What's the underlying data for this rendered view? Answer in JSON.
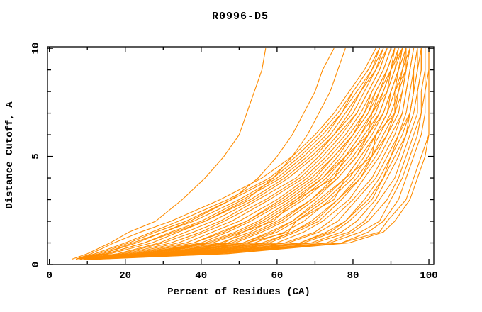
{
  "page": {
    "background": "#ffffff"
  },
  "chart_data": {
    "type": "line",
    "title": "R0996-D5",
    "xlabel": "Percent of Residues (CA)",
    "ylabel": "Distance Cutoff, A",
    "xlim": [
      0,
      100
    ],
    "ylim": [
      0,
      10
    ],
    "x_major_ticks": [
      0,
      20,
      40,
      60,
      80,
      100
    ],
    "x_minor_ticks": [
      10,
      30,
      50,
      70,
      90
    ],
    "y_major_ticks": [
      0,
      5,
      10
    ],
    "y_minor_ticks": [
      1,
      2,
      3,
      4,
      6,
      7,
      8,
      9
    ],
    "grid": false,
    "legend": "none",
    "line_color": "#FF8C00",
    "axis_color": "#000000",
    "series_description": "Each curve is one predicted model: percent of CA residues (x) within a distance cutoff in Angstroms (y). Curves share the cutoff grid below; values are percents per cutoff.",
    "cutoffs": [
      0.25,
      0.5,
      1,
      1.5,
      2,
      3,
      4,
      5,
      6,
      7,
      8,
      9,
      10
    ],
    "series": [
      [
        13,
        47,
        79,
        88,
        91,
        95,
        97,
        99,
        100,
        100,
        100,
        100,
        100
      ],
      [
        12,
        46,
        77,
        87,
        89,
        94,
        96,
        98,
        100,
        100,
        100,
        100,
        100
      ],
      [
        12,
        43,
        77,
        84,
        88,
        92,
        94,
        96,
        98,
        99,
        99,
        100,
        100
      ],
      [
        11,
        44,
        74,
        82,
        87,
        90,
        93,
        95,
        97,
        98,
        99,
        99,
        99
      ],
      [
        12,
        42,
        73,
        80,
        84,
        89,
        92,
        94,
        96,
        98,
        98,
        99,
        99
      ],
      [
        11,
        41,
        70,
        79,
        83,
        87,
        91,
        93,
        95,
        97,
        97,
        98,
        98
      ],
      [
        11,
        40,
        69,
        77,
        81,
        86,
        89,
        92,
        94,
        96,
        97,
        98,
        98
      ],
      [
        11,
        39,
        67,
        75,
        79,
        85,
        88,
        91,
        94,
        95,
        96,
        97,
        97
      ],
      [
        11,
        38,
        66,
        74,
        78,
        84,
        88,
        90,
        93,
        95,
        96,
        97,
        98
      ],
      [
        11,
        38,
        66,
        73,
        78,
        83,
        87,
        90,
        92,
        95,
        96,
        96,
        97
      ],
      [
        11,
        37,
        63,
        71,
        76,
        81,
        86,
        89,
        92,
        94,
        95,
        96,
        97
      ],
      [
        10,
        36,
        62,
        70,
        74,
        80,
        85,
        88,
        91,
        93,
        94,
        95,
        96
      ],
      [
        11,
        35,
        60,
        67,
        72,
        79,
        83,
        87,
        90,
        93,
        94,
        95,
        96
      ],
      [
        10,
        34,
        58,
        65,
        71,
        77,
        82,
        86,
        89,
        92,
        93,
        94,
        95
      ],
      [
        10,
        33,
        57,
        64,
        70,
        76,
        82,
        85,
        89,
        91,
        93,
        94,
        95
      ],
      [
        10,
        33,
        56,
        64,
        69,
        76,
        81,
        85,
        88,
        91,
        92,
        94,
        95
      ],
      [
        10,
        32,
        54,
        62,
        67,
        74,
        80,
        84,
        87,
        90,
        92,
        93,
        95
      ],
      [
        9,
        33,
        52,
        63,
        65,
        75,
        78,
        85,
        86,
        91,
        91,
        94,
        94
      ],
      [
        10,
        31,
        52,
        60,
        65,
        73,
        79,
        83,
        86,
        89,
        91,
        93,
        94
      ],
      [
        10,
        30,
        51,
        59,
        64,
        72,
        78,
        82,
        86,
        89,
        90,
        92,
        94
      ],
      [
        10,
        30,
        51,
        58,
        64,
        71,
        78,
        82,
        86,
        89,
        91,
        92,
        94
      ],
      [
        9,
        29,
        49,
        56,
        62,
        70,
        76,
        81,
        85,
        88,
        90,
        92,
        93
      ],
      [
        9,
        28,
        48,
        55,
        61,
        69,
        76,
        81,
        84,
        88,
        90,
        92,
        93
      ],
      [
        9,
        28,
        47,
        54,
        60,
        69,
        75,
        80,
        84,
        87,
        89,
        91,
        93
      ],
      [
        9,
        27,
        45,
        53,
        58,
        67,
        74,
        79,
        83,
        87,
        89,
        91,
        92
      ],
      [
        10,
        25,
        46,
        51,
        59,
        65,
        75,
        78,
        84,
        85,
        89,
        90,
        93
      ],
      [
        9,
        26,
        43,
        51,
        57,
        66,
        73,
        78,
        82,
        86,
        88,
        90,
        92
      ],
      [
        9,
        25,
        42,
        50,
        56,
        65,
        72,
        78,
        82,
        85,
        88,
        90,
        91
      ],
      [
        9,
        25,
        41,
        49,
        55,
        64,
        72,
        77,
        81,
        85,
        87,
        90,
        92
      ],
      [
        9,
        24,
        40,
        47,
        53,
        63,
        71,
        76,
        80,
        84,
        87,
        89,
        91
      ],
      [
        9,
        23,
        38,
        46,
        52,
        62,
        70,
        75,
        80,
        84,
        86,
        89,
        91
      ],
      [
        9,
        23,
        38,
        45,
        52,
        61,
        69,
        75,
        80,
        83,
        86,
        89,
        91
      ],
      [
        8,
        22,
        36,
        43,
        50,
        60,
        68,
        74,
        79,
        83,
        85,
        88,
        90
      ],
      [
        8,
        21,
        34,
        41,
        48,
        58,
        67,
        73,
        78,
        82,
        85,
        88,
        90
      ],
      [
        8,
        20,
        32,
        40,
        46,
        57,
        66,
        72,
        77,
        81,
        84,
        87,
        89
      ],
      [
        8,
        19,
        30,
        38,
        45,
        55,
        65,
        71,
        76,
        81,
        84,
        87,
        89
      ],
      [
        8,
        18,
        29,
        36,
        43,
        54,
        63,
        70,
        75,
        80,
        83,
        86,
        89
      ],
      [
        8,
        16,
        27,
        34,
        41,
        53,
        62,
        69,
        75,
        79,
        82,
        86,
        88
      ],
      [
        8,
        15,
        25,
        32,
        40,
        51,
        61,
        68,
        74,
        78,
        82,
        85,
        88
      ],
      [
        7,
        14,
        23,
        30,
        38,
        50,
        60,
        67,
        73,
        77,
        81,
        85,
        87
      ],
      [
        7,
        13,
        21,
        28,
        36,
        48,
        59,
        66,
        72,
        77,
        80,
        84,
        87
      ],
      [
        7,
        12,
        20,
        27,
        34,
        47,
        58,
        65,
        71,
        76,
        80,
        84,
        87
      ],
      [
        7,
        11,
        17,
        24,
        32,
        45,
        56,
        64,
        70,
        75,
        79,
        83,
        86
      ],
      [
        8,
        15,
        25,
        33,
        41,
        52,
        59,
        64,
        68,
        71,
        74,
        76,
        78
      ],
      [
        8,
        14,
        22,
        30,
        37,
        48,
        55,
        60,
        64,
        67,
        70,
        72,
        75
      ],
      [
        6,
        10,
        16,
        21,
        28,
        35,
        41,
        46,
        50,
        52,
        54,
        56,
        57
      ]
    ]
  }
}
